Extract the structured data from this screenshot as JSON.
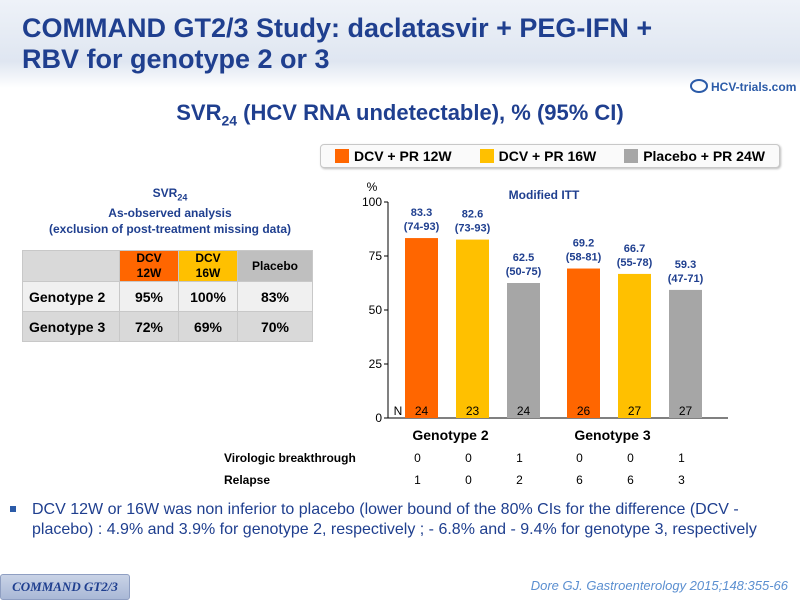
{
  "title": "COMMAND GT2/3 Study: daclatasvir + PEG-IFN + RBV for genotype 2 or 3",
  "logo": "HCV-trials.com",
  "subtitle": {
    "prefix": "SVR",
    "sub": "24",
    "suffix": " (HCV RNA undetectable), % (95% CI)"
  },
  "table": {
    "heading_line1": "SVR",
    "heading_line1_sub": "24",
    "heading_line2": "As-observed analysis",
    "heading_line3": "(exclusion of post-treatment missing data)",
    "columns": [
      {
        "line1": "DCV",
        "line2": "12W",
        "color": "#ff6600"
      },
      {
        "line1": "DCV",
        "line2": "16W",
        "color": "#ffc000"
      },
      {
        "line1": "Placebo",
        "line2": "",
        "color": "#bfbfbf"
      }
    ],
    "rows": [
      {
        "label": "Genotype 2",
        "values": [
          "95%",
          "100%",
          "83%"
        ]
      },
      {
        "label": "Genotype 3",
        "values": [
          "72%",
          "69%",
          "70%"
        ]
      }
    ]
  },
  "chart_data": {
    "type": "bar",
    "title": "Modified ITT",
    "ylabel": "%",
    "ylim": [
      0,
      100
    ],
    "yticks": [
      0,
      25,
      50,
      75,
      100
    ],
    "groups": [
      "Genotype 2",
      "Genotype 3"
    ],
    "n_label": "N",
    "series": [
      {
        "name": "DCV + PR 12W",
        "color": "#ff6600",
        "values": [
          83.3,
          69.2
        ],
        "ci": [
          "(74-93)",
          "(58-81)"
        ],
        "n": [
          24,
          26
        ]
      },
      {
        "name": "DCV + PR 16W",
        "color": "#ffc000",
        "values": [
          82.6,
          66.7
        ],
        "ci": [
          "(73-93)",
          "(55-78)"
        ],
        "n": [
          23,
          27
        ]
      },
      {
        "name": "Placebo + PR 24W",
        "color": "#a6a6a6",
        "values": [
          62.5,
          59.3
        ],
        "ci": [
          "(50-75)",
          "(47-71)"
        ],
        "n": [
          24,
          27
        ]
      }
    ],
    "extra_rows": [
      {
        "label": "Virologic breakthrough",
        "values": [
          0,
          0,
          1,
          0,
          0,
          1
        ]
      },
      {
        "label": "Relapse",
        "values": [
          1,
          0,
          2,
          6,
          6,
          3
        ]
      }
    ]
  },
  "bullet": "DCV 12W or 16W was non inferior to placebo (lower bound of the 80% CIs for the difference (DCV - placebo) : 4.9% and 3.9% for genotype 2, respectively ; - 6.8% and  - 9.4% for genotype 3, respectively",
  "footer_tag": "COMMAND GT2/3",
  "footer_ref": "Dore GJ. Gastroenterology 2015;148:355-66"
}
